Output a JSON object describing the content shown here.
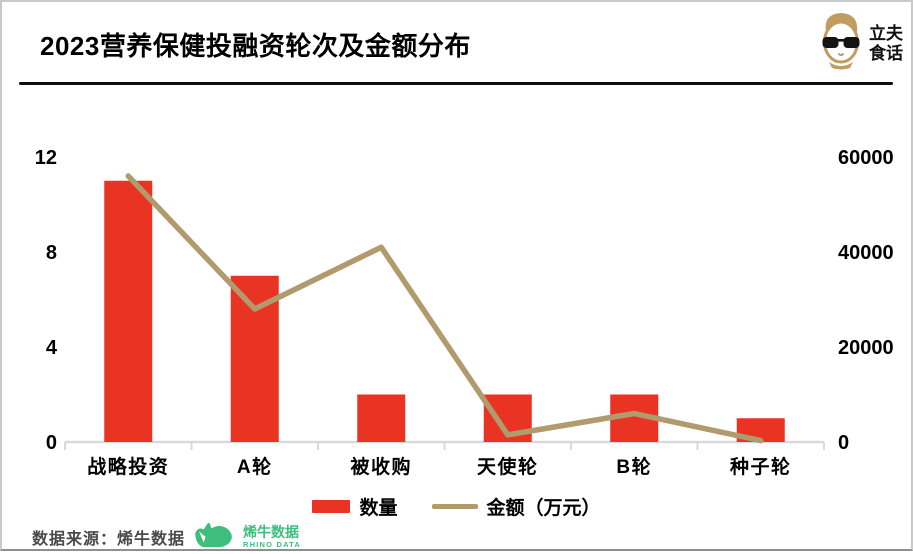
{
  "header": {
    "title": "2023营养保健投融资轮次及金额分布",
    "brand": {
      "line1": "立夫",
      "line2": "食话"
    }
  },
  "chart_data": {
    "type": "bar+line",
    "title": "2023营养保健投融资轮次及金额分布",
    "categories": [
      "战略投资",
      "A轮",
      "被收购",
      "天使轮",
      "B轮",
      "种子轮"
    ],
    "series": [
      {
        "name": "数量",
        "type": "bar",
        "axis": "left",
        "color": "#e93323",
        "values": [
          11,
          7,
          2,
          2,
          2,
          1
        ]
      },
      {
        "name": "金额（万元）",
        "type": "line",
        "axis": "right",
        "color": "#b19a6c",
        "values": [
          56000,
          28000,
          41000,
          1500,
          6000,
          300
        ]
      }
    ],
    "left_axis": {
      "ticks": [
        0,
        4,
        8,
        12
      ],
      "range": [
        0,
        12
      ]
    },
    "right_axis": {
      "ticks": [
        0,
        20000,
        40000,
        60000
      ],
      "range": [
        0,
        60000
      ]
    },
    "grid": false,
    "legend_position": "bottom",
    "axis_line_color": "#d9d9d9"
  },
  "legend": {
    "items": [
      {
        "label": "数量",
        "color": "#e93323",
        "marker": "bar"
      },
      {
        "label": "金额（万元）",
        "color": "#b19a6c",
        "marker": "line"
      }
    ]
  },
  "footer": {
    "source_label": "数据来源：烯牛数据",
    "logo_text": "烯牛数据",
    "logo_subtext": "RHINO DATA",
    "logo_color": "#3dbe7c"
  }
}
